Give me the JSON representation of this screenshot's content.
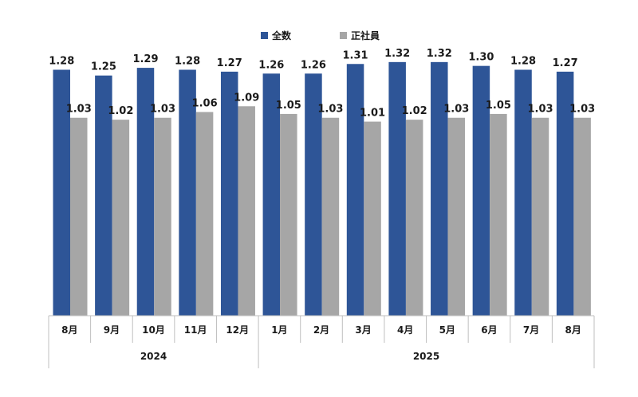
{
  "chart_data": {
    "type": "bar",
    "categories": [
      "8月",
      "9月",
      "10月",
      "11月",
      "12月",
      "1月",
      "2月",
      "3月",
      "4月",
      "5月",
      "6月",
      "7月",
      "8月"
    ],
    "groups": [
      {
        "label": "2024",
        "span": 5
      },
      {
        "label": "2025",
        "span": 8
      }
    ],
    "series": [
      {
        "name": "全数",
        "color": "#2e5597",
        "values": [
          1.28,
          1.25,
          1.29,
          1.28,
          1.27,
          1.26,
          1.26,
          1.31,
          1.32,
          1.32,
          1.3,
          1.28,
          1.27
        ]
      },
      {
        "name": "正社員",
        "color": "#a6a6a6",
        "values": [
          1.03,
          1.02,
          1.03,
          1.06,
          1.09,
          1.05,
          1.03,
          1.01,
          1.02,
          1.03,
          1.05,
          1.03,
          1.03
        ]
      }
    ],
    "ylim": [
      0,
      1.56
    ],
    "grid": false,
    "legend_position": "top-center",
    "data_labels": true
  }
}
